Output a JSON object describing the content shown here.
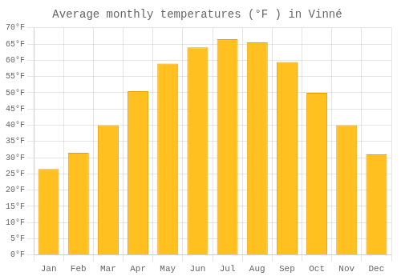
{
  "chart_data": {
    "type": "bar",
    "title": "Average monthly temperatures (°F ) in Vinné",
    "categories": [
      "Jan",
      "Feb",
      "Mar",
      "Apr",
      "May",
      "Jun",
      "Jul",
      "Aug",
      "Sep",
      "Oct",
      "Nov",
      "Dec"
    ],
    "values": [
      26.5,
      31.5,
      40.0,
      50.5,
      59.0,
      64.0,
      66.5,
      65.5,
      59.5,
      50.0,
      40.0,
      31.0
    ],
    "color": "#FFC020",
    "ylim": [
      0,
      70
    ],
    "yticks": [
      {
        "value": 0,
        "label": "0°F"
      },
      {
        "value": 5,
        "label": "5°F"
      },
      {
        "value": 10,
        "label": "10°F"
      },
      {
        "value": 15,
        "label": "15°F"
      },
      {
        "value": 20,
        "label": "20°F"
      },
      {
        "value": 25,
        "label": "25°F"
      },
      {
        "value": 30,
        "label": "30°F"
      },
      {
        "value": 35,
        "label": "35°F"
      },
      {
        "value": 40,
        "label": "40°F"
      },
      {
        "value": 45,
        "label": "45°F"
      },
      {
        "value": 50,
        "label": "50°F"
      },
      {
        "value": 55,
        "label": "55°F"
      },
      {
        "value": 60,
        "label": "60°F"
      },
      {
        "value": 65,
        "label": "65°F"
      },
      {
        "value": 70,
        "label": "70°F"
      }
    ],
    "grid": true
  }
}
